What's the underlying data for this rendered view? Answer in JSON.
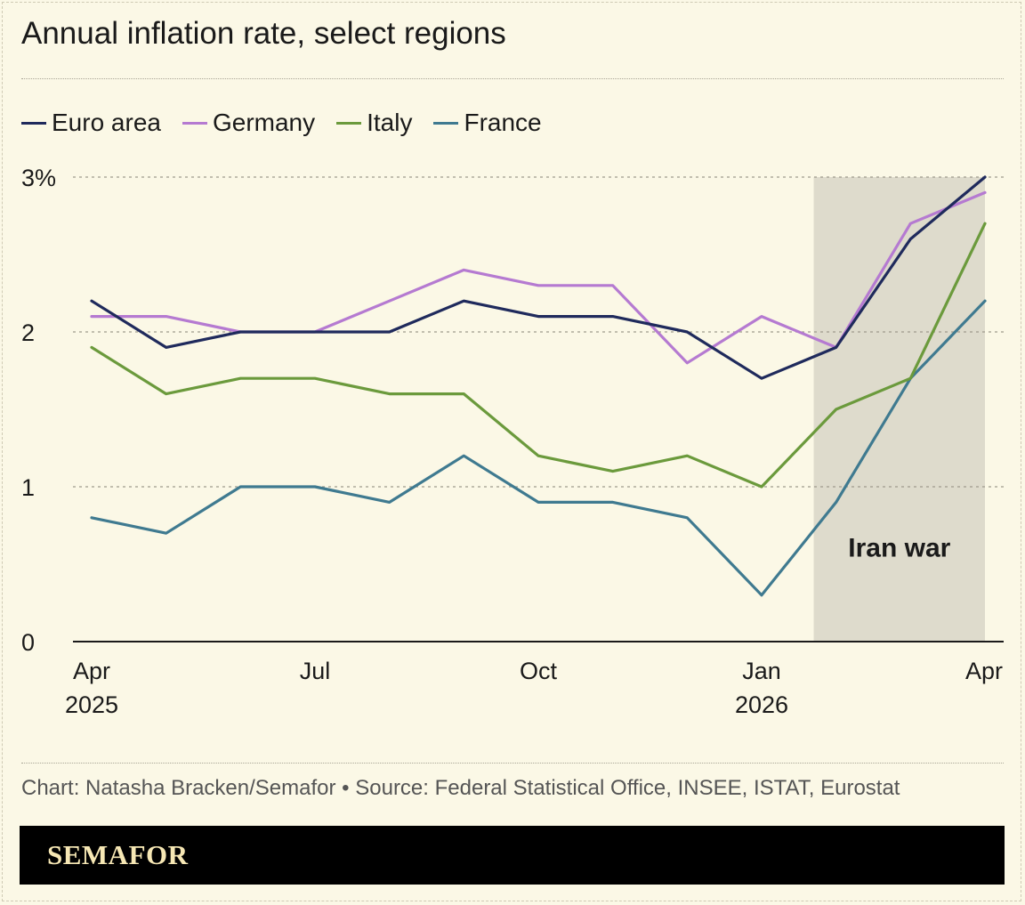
{
  "header": {
    "title": "Annual inflation rate, select regions"
  },
  "footer": {
    "source": "Chart: Natasha Bracken/Semafor • Source: Federal Statistical Office, INSEE, ISTAT, Eurostat",
    "brand": "SEMAFOR"
  },
  "chart_data": {
    "type": "line",
    "x": [
      "2025-04",
      "2025-05",
      "2025-06",
      "2025-07",
      "2025-08",
      "2025-09",
      "2025-10",
      "2025-11",
      "2025-12",
      "2026-01",
      "2026-02",
      "2026-03",
      "2026-04"
    ],
    "x_ticks": [
      {
        "x": "2025-04",
        "label": "Apr",
        "sublabel": "2025"
      },
      {
        "x": "2025-07",
        "label": "Jul",
        "sublabel": ""
      },
      {
        "x": "2025-10",
        "label": "Oct",
        "sublabel": ""
      },
      {
        "x": "2026-01",
        "label": "Jan",
        "sublabel": "2026"
      },
      {
        "x": "2026-04",
        "label": "Apr",
        "sublabel": ""
      }
    ],
    "y_ticks": [
      {
        "value": 0,
        "label": "0"
      },
      {
        "value": 1,
        "label": "1"
      },
      {
        "value": 2,
        "label": "2"
      },
      {
        "value": 3,
        "label": "3%"
      }
    ],
    "ylim": [
      0,
      3
    ],
    "grid": true,
    "legend_position": "top-left",
    "series": [
      {
        "name": "Euro area",
        "color": "#1f2a5c",
        "values": [
          2.2,
          1.9,
          2.0,
          2.0,
          2.0,
          2.2,
          2.1,
          2.1,
          2.0,
          1.7,
          1.9,
          2.6,
          3.0
        ]
      },
      {
        "name": "Germany",
        "color": "#b57ad1",
        "values": [
          2.1,
          2.1,
          2.0,
          2.0,
          2.2,
          2.4,
          2.3,
          2.3,
          1.8,
          2.1,
          1.9,
          2.7,
          2.9
        ]
      },
      {
        "name": "Italy",
        "color": "#6b9a3c",
        "values": [
          1.9,
          1.6,
          1.7,
          1.7,
          1.6,
          1.6,
          1.2,
          1.1,
          1.2,
          1.0,
          1.5,
          1.7,
          2.7
        ]
      },
      {
        "name": "France",
        "color": "#3f7a90",
        "values": [
          0.8,
          0.7,
          1.0,
          1.0,
          0.9,
          1.2,
          0.9,
          0.9,
          0.8,
          0.3,
          0.9,
          1.7,
          2.2
        ]
      }
    ],
    "annotations": [
      {
        "type": "shaded-band",
        "x_start": "2026-02",
        "x_end": "2026-04",
        "label": "Iran war",
        "color": "#dedbcc"
      }
    ]
  }
}
